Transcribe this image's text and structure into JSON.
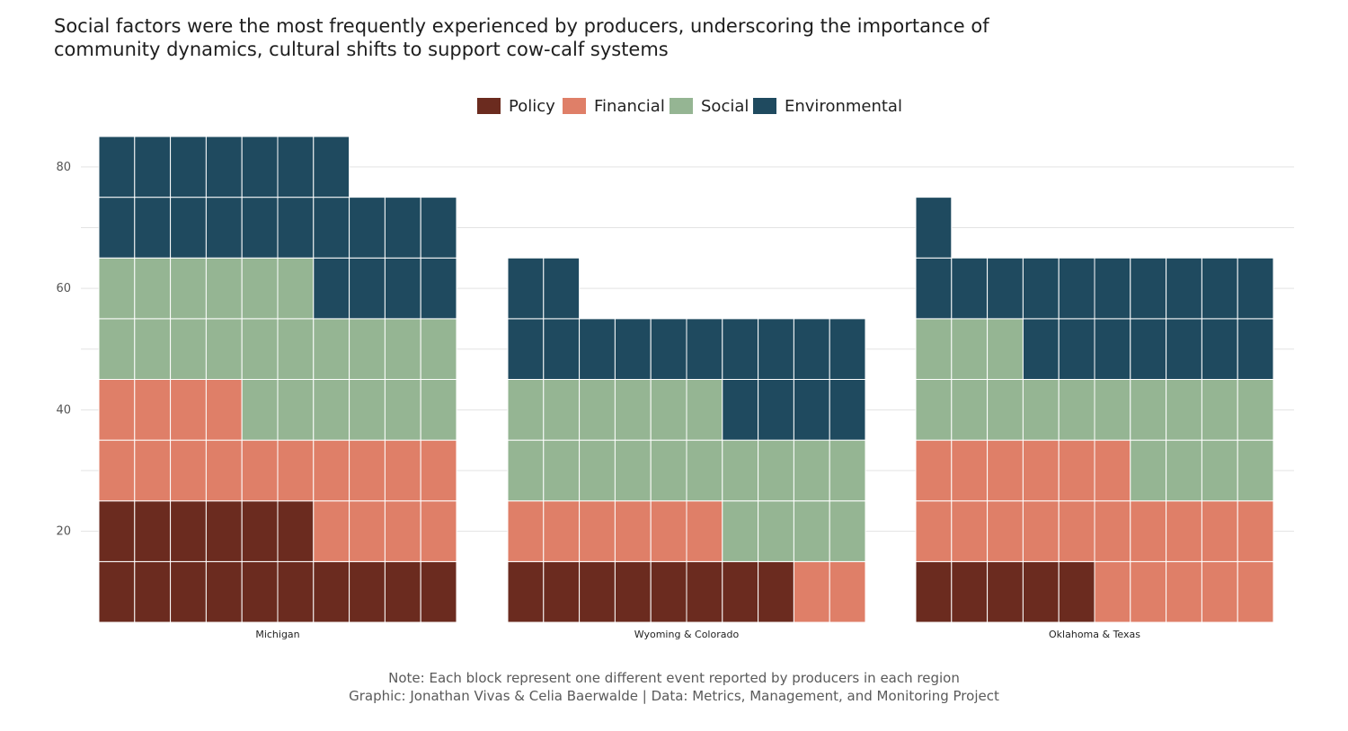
{
  "title_lines": [
    "Social factors were the most frequently experienced by producers, underscoring the importance of",
    "community dynamics, cultural shifts to support cow-calf systems"
  ],
  "caption_lines": [
    "Note: Each block represent one different event reported by producers in each region",
    "Graphic: Jonathan Vivas & Celia Baerwalde | Data: Metrics, Management, and Monitoring Project"
  ],
  "colors": {
    "Policy": "#6b2b1f",
    "Financial": "#df7f68",
    "Social": "#95b593",
    "Environmental": "#1f4a5f",
    "grid": "#e3e3e3",
    "background": "#ffffff"
  },
  "chart_data": {
    "type": "waffle",
    "legend": [
      "Policy",
      "Financial",
      "Social",
      "Environmental"
    ],
    "legend_position": "top",
    "yticks": [
      20,
      40,
      60,
      80
    ],
    "ylim": [
      5,
      85
    ],
    "columns_per_panel": 10,
    "units_per_row": 10,
    "panels": [
      {
        "name": "Michigan",
        "counts": {
          "Policy": 16,
          "Financial": 18,
          "Social": 22,
          "Environmental": 21
        }
      },
      {
        "name": "Wyoming & Colorado",
        "counts": {
          "Policy": 8,
          "Financial": 8,
          "Social": 20,
          "Environmental": 16
        }
      },
      {
        "name": "Oklahoma & Texas",
        "counts": {
          "Policy": 5,
          "Financial": 21,
          "Social": 17,
          "Environmental": 18
        }
      }
    ]
  }
}
